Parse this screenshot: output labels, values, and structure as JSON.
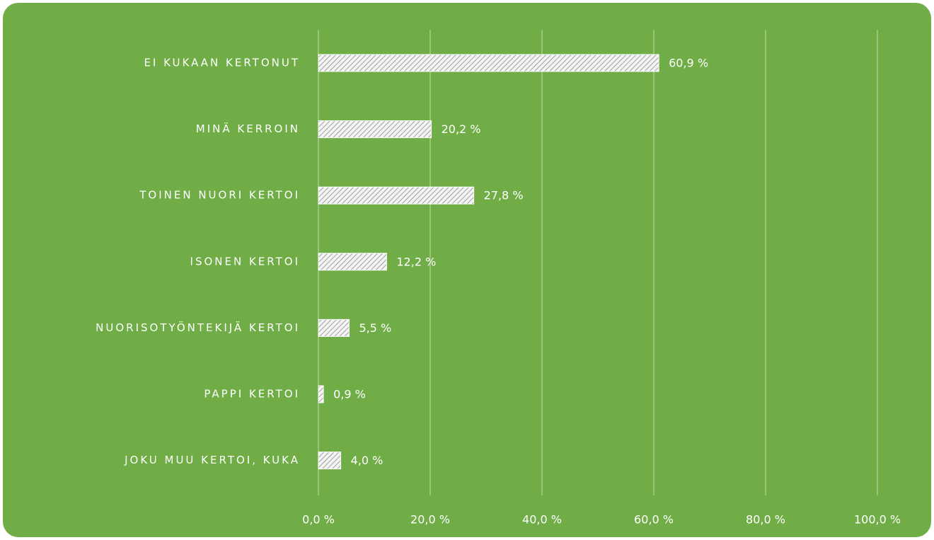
{
  "chart_data": {
    "type": "bar",
    "orientation": "horizontal",
    "categories": [
      "EI KUKAAN KERTONUT",
      "MINÄ KERROIN",
      "TOINEN NUORI KERTOI",
      "ISONEN KERTOI",
      "NUORISOTYÖNTEKIJÄ KERTOI",
      "PAPPI KERTOI",
      "JOKU MUU KERTOI, KUKA"
    ],
    "values": [
      60.9,
      20.2,
      27.8,
      12.2,
      5.5,
      0.9,
      4.0
    ],
    "value_labels": [
      "60,9 %",
      "20,2 %",
      "27,8 %",
      "12,2 %",
      "5,5 %",
      "0,9 %",
      "4,0 %"
    ],
    "color": "#ffffff",
    "background": "#70ad47",
    "xlim": [
      0,
      100
    ],
    "xticks": [
      {
        "value": 0,
        "label": "0,0 %"
      },
      {
        "value": 20,
        "label": "20,0 %"
      },
      {
        "value": 40,
        "label": "40,0 %"
      },
      {
        "value": 60,
        "label": "60,0 %"
      },
      {
        "value": 80,
        "label": "80,0 %"
      },
      {
        "value": 100,
        "label": "100,0 %"
      }
    ],
    "grid": true
  }
}
